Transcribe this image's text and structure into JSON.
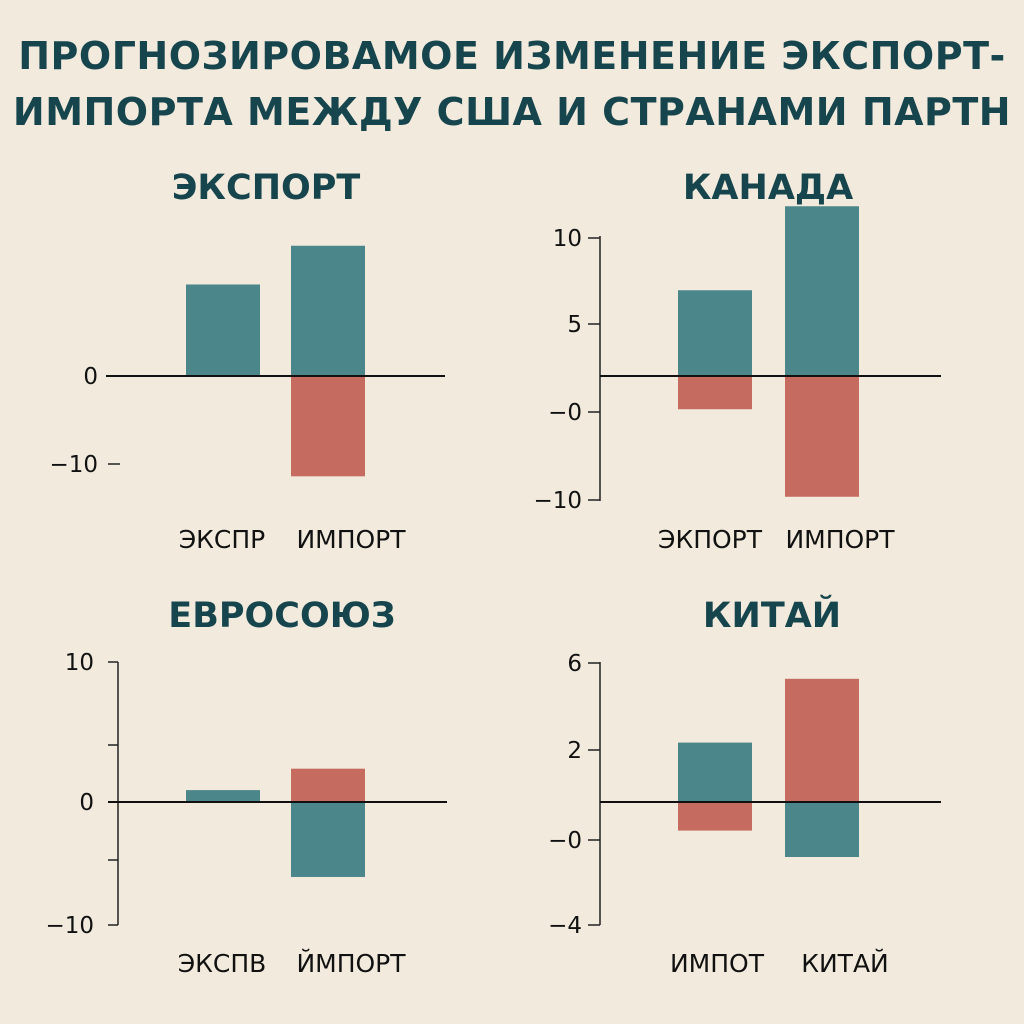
{
  "title_line1": "ПРОГНОЗИРОВАМОЕ ИЗМЕНЕНИЕ ЭКСПОРТ-",
  "title_line2": "ИМПОРТА МЕЖДУ США И СТРАНАМИ ПАРТН",
  "colors": {
    "teal": "#4b868a",
    "red": "#c66b5f",
    "title": "#16454d",
    "background": "#f2ebdd"
  },
  "chart_data": [
    {
      "type": "bar",
      "title": "ЭКСПОРТ",
      "categories": [
        "ЭКСПР",
        "ИМПОРТ"
      ],
      "y_ticks": [
        {
          "value": 0,
          "label": "0"
        },
        {
          "value": -10,
          "label": "−10"
        }
      ],
      "axis_line": false,
      "ylim": [
        -13,
        15
      ],
      "segments": [
        {
          "category": "ЭКСПР",
          "value": 10.4,
          "color": "teal"
        },
        {
          "category": "ИМПОРТ",
          "value": 14.8,
          "color": "teal"
        },
        {
          "category": "ИМПОРТ",
          "value": -11.4,
          "color": "red"
        }
      ]
    },
    {
      "type": "bar",
      "title": "КАНАДА",
      "categories": [
        "ЭКПОРТ",
        "ИМПОРТ"
      ],
      "y_ticks": [
        {
          "value": 10,
          "label": "10"
        },
        {
          "value": 5,
          "label": "5"
        },
        {
          "value": 0,
          "label": "−0"
        },
        {
          "value": -10,
          "label": "−10"
        }
      ],
      "axis_line": true,
      "ylim": [
        -10,
        10
      ],
      "segments": [
        {
          "category": "ЭКПОРТ",
          "value": 4.9,
          "color": "teal"
        },
        {
          "category": "ЭКПОРТ",
          "value": -1.9,
          "color": "red"
        },
        {
          "category": "ИМПОРТ",
          "value": 9.7,
          "color": "teal"
        },
        {
          "category": "ИМПОРТ",
          "value": -6.9,
          "color": "red"
        }
      ]
    },
    {
      "type": "bar",
      "title": "ЕВРОСОЮЗ",
      "categories": [
        "ЭКСПВ",
        "ЙМПОРТ"
      ],
      "y_ticks": [
        {
          "value": 10,
          "label": "10"
        },
        {
          "value": 5,
          "label": ""
        },
        {
          "value": 0,
          "label": "0"
        },
        {
          "value": -5,
          "label": ""
        },
        {
          "value": -10,
          "label": "−10"
        }
      ],
      "axis_line": true,
      "ylim": [
        -10,
        10
      ],
      "segments": [
        {
          "category": "ЭКСПВ",
          "value": 1.0,
          "color": "teal"
        },
        {
          "category": "ЙМПОРТ",
          "value": 2.8,
          "color": "red"
        },
        {
          "category": "ЙМПОРТ",
          "value": -6.3,
          "color": "teal"
        }
      ]
    },
    {
      "type": "bar",
      "title": "КИТАЙ",
      "categories": [
        "ИМПОТ",
        "КИТАЙ"
      ],
      "y_ticks": [
        {
          "value": 6,
          "label": "6"
        },
        {
          "value": 2,
          "label": "2"
        },
        {
          "value": 0,
          "label": "−0"
        },
        {
          "value": -4,
          "label": "−4"
        }
      ],
      "axis_line": true,
      "ylim": [
        -4,
        6
      ],
      "segments": [
        {
          "category": "ИМПОТ",
          "value": 2.7,
          "color": "teal"
        },
        {
          "category": "ИМПОТ",
          "value": -1.3,
          "color": "red"
        },
        {
          "category": "КИТАЙ",
          "value": 5.6,
          "color": "red"
        },
        {
          "category": "КИТАЙ",
          "value": -2.5,
          "color": "teal"
        }
      ]
    }
  ]
}
